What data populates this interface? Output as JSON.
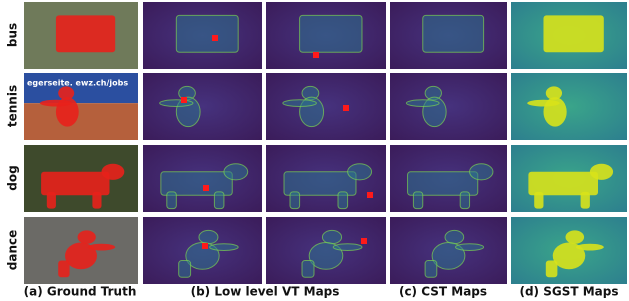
{
  "row_labels": [
    "bus",
    "tennis",
    "dog",
    "dance"
  ],
  "captions": [
    "(a) Ground Truth",
    "(b) Low level VT Maps",
    "(c) CST Maps",
    "(d) SGST Maps"
  ],
  "photo_text": "egerseite. ewz.ch/jobs"
}
